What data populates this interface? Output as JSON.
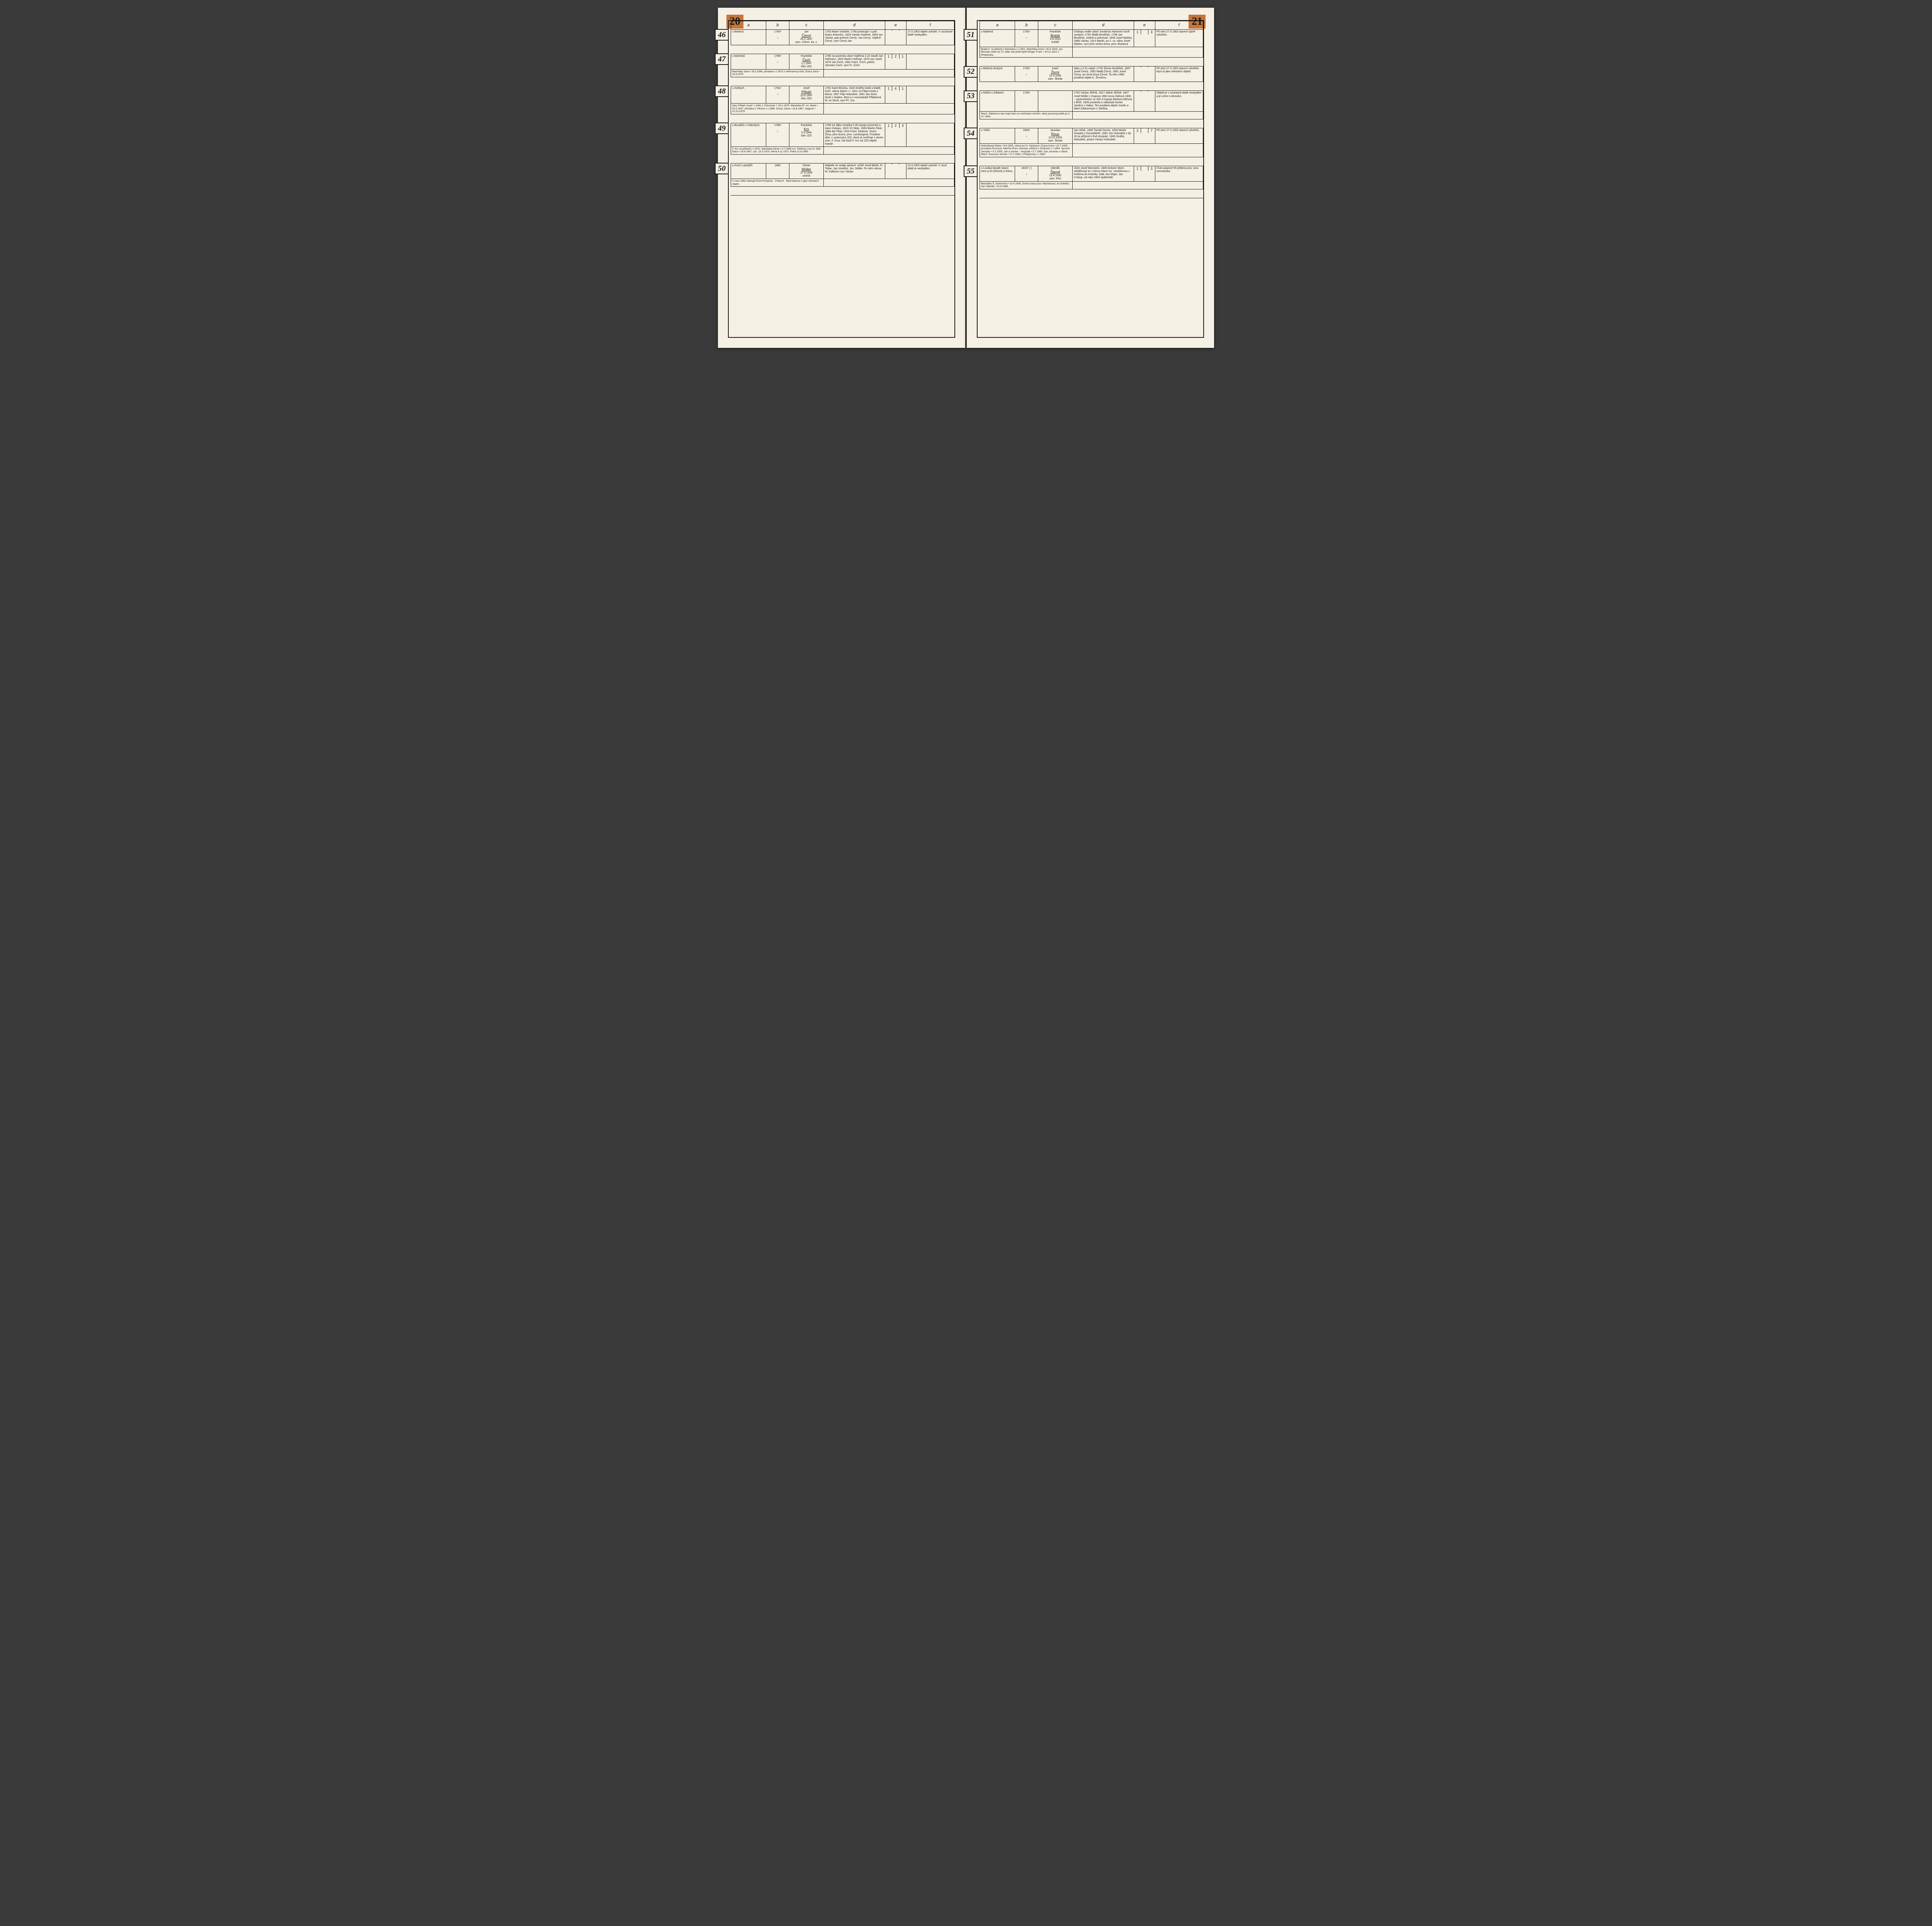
{
  "left": {
    "pageNum": "20",
    "headers": [
      "a",
      "b",
      "c",
      "d",
      "e",
      "f"
    ],
    "rows": [
      {
        "num": "46",
        "a": "u Bebeců",
        "b": "1783ᵃ",
        "circle": "○",
        "c": "Jan\nČerný\n26.2.1947\nzam. Chlum. ka. z.",
        "d": "1783 Adam Voráček, 1790 postoupil i s poli bratru Antonínu, 1824 Václav Voráček, 1863 syn Václav, pak Antonín Černý, Jan Černý, Vojtěch Černý, nyní Černý Jan",
        "e": [
          "",
          "",
          ""
        ],
        "f": "27.II.1903 objekt vyhořel. V současné době neobydlen.",
        "note": ""
      },
      {
        "num": "47",
        "a": "u Martínků",
        "b": "1785ᵃ",
        "circle": "○",
        "c": "František\nČech\n1.1.1947\nčlen JZD",
        "d": "1785 na pozemku obce Vojtěcha č.22 stavěl Jan Hofmann, 1822 Martin Hofman, 1870 syn Josef, 1878 Jan Čech, 1881 Frant. Čech, potom Jaroslav Čech, nyní Fr. Čech.",
        "e": [
          "1",
          "2",
          "1"
        ],
        "f": "",
        "note": "Manželka Jana • 18.3.1948, přivdána v r.1973 z Heřmanovy Huti. Dcera Jana • 16.9.1975."
      },
      {
        "num": "48",
        "a": "u Hořkých",
        "b": "1791ᵃ",
        "circle": "○",
        "c": "Josef\nPřibáň\n23.6.1947\nčlen JZD",
        "d": "1791 Karel Brůcha, 1823 Ondřej Hoibl a Matěj Koží, vdova Marie v r. 1831 za Filipa Kasla z Borov, 1857 Filip Holoubek, 1891 Jan Antm, lesař z Hrádce. Bem ji v novostavbě Přibáňová M. ze Sené, nyní Př. Jos.",
        "e": [
          "1",
          "4",
          "1"
        ],
        "f": "",
        "note": "Otec Přibáň Josef • r.1941 z Chlumčan † 29.1.1979. Manželka Př. ml. Marie • 20.5.1947, přivdána z Vlkonic v r.1966. Dcery: Dana • 19.8.1967, Dagmar • 10.10.1979."
      },
      {
        "num": "49",
        "a": "u Boudíků\nu Videckých",
        "b": "1786ᵃ",
        "circle": "○",
        "c": "František\nKrs\n3.3.1946\nčlen JZD",
        "d": "1786 od Jiljka Voráčka č.30 kupuje pozemek a staví chalupu, 1823 Vít Sleje, 1854 Martin Fikal, 1884 Ale Fikal, 1919 Frant. Nedoral. Vozím Žima, jeho dcera, prov. Lambergová. Prodává dům i s polnostmi JZD, které je směňuje s otcem zem. F. Krsa. Od časů F. Krs od JZD objekt kupuje.",
        "e": [
          "1",
          "2",
          "3"
        ],
        "f": "",
        "note": "F. Krs se přiženil v r.1972. Manželka Alena • 4.7.1948 roz. Fleflová z čp.13. Děti: Dana • 19.8.1967, syn. 23.3.1970, Alena 4.11.1972, Petra 21.8.1980."
      },
      {
        "num": "50",
        "a": "u Kozů\nu pastýřů",
        "b": "1882",
        "circle": "",
        "c": "Václav\nMüller\n27.9.1929\nzedník",
        "d": "Majitelé se nedají zjistovit: určitě Josef Bárlík, Fr. Tobar, Jan Voráček, Jos. Müller. Po něm vdova M. Kalboton syn Václav.",
        "e": [
          "",
          "",
          ""
        ],
        "f": "23.3.1903 objekt vyhořel. V souč. době je neobydlen.",
        "note": "V roce 1983 zakoupil Emil Pchopčas · Praha 6 · Mysl-bekova 1 jako rekreační objekt."
      }
    ]
  },
  "right": {
    "pageNum": "21",
    "headers": [
      "a",
      "b",
      "c",
      "d",
      "e",
      "f"
    ],
    "rows": [
      {
        "num": "51",
        "a": "u Myklesů",
        "b": "1792ᵃ",
        "circle": "○",
        "c": "František\nBrada\n9.8.1924\ntruhlář",
        "d": "Chalupu vedle vyboř. kovárnou Hamenní nově vystavil r.1792 Matěj Brodíček, 1798 Jan Brodíček, zedník a pokrývač, 1846 Josef Mykles, 1869 Václav, 1913 Martin, po 2. sv. válce Josef Mykles, nyní jeho sestra Anna, prov. Bradová.",
        "e": [
          "1",
          "",
          "3"
        ],
        "f": "Při ohni 27.II.1903 stavení úplně vyhořelo.",
        "note": "Brada F. se přiženil z Nehodiva v r.1951. Manželka Anna • 20.4.1929, syn Miroslav oddo čp.73. Dále zde ještě bydlí Klinger Frant. • 20.11.1912 z Přebýcinky."
      },
      {
        "num": "52",
        "a": "u Bebesů drukých",
        "b": "1792ᵃ",
        "circle": "○",
        "c": "Karel\nŽivný\n22.4.1950\nzam. Škoda",
        "d": "Jako u č.51 nabyl r.1792 Šimon Brodíček, 1847 Josef Černý, 1852 Matěj Černý, 1891 Josef Černý, po smrti Anna Černá. Ta roku 1980 prodává objekt K. Živnému.",
        "e": [
          "",
          "",
          ""
        ],
        "f": "Při ohni 27.II.1903 stavení vyhořelo. Nyní je jako rekreační objekt.",
        "note": ""
      },
      {
        "num": "53",
        "a": "u Míčků\nu Zdeborů",
        "b": "1792ᵃ",
        "circle": "",
        "c": "",
        "d": "1792 Václav Jiříček, 1817 Jakub Jiříček, 1847 Josef Müller z Oupova 1862 Anna Šážová 1900 – spoluměstice za 300 zl kupuje Barbora Míčová z Bříží. 1905 postavila a odkázala Hynku Jandovi z Habor. Ten prodává objekt Josefu a Marii Zdeborovým z Sehlina.",
        "e": [
          "",
          "",
          ""
        ],
        "f": "Objekt je v současné době neobydlen a je určen k demolici.",
        "note": "Manž. Zdeborovi zde mají krám se smíšeným zbožím, který provozují ještě po 2. sv. válce."
      },
      {
        "num": "54",
        "a": "u Vlčků",
        "b": "1805ᵃ",
        "circle": "○",
        "c": "Jaroslav\nRous\n13.12.1928\nzam. Škoda",
        "d": "Jan Vlček, 1805 Tomáš Domin, 1829 Martin Hnojský z Domažliček, 1862 Jan Holoubek z čp. 28 se přiženil k Evě Hnojské, 1895 Ondřej Holoubek, potom Václav Holoubek.",
        "e": [
          "2",
          "",
          "7"
        ],
        "f": "Při ohni 27.II.1903 stavení vyhořelo.",
        "note": "Holoubková Marie • 9.6.1905, vdova po H. Václavovi. Dcera Anna • 10.7.1930, provdaná Rousová. Manžel Rous Jaroslav, přiženil z Čečkovic v r.1954. Synové: Jaroslav • 5.2.1955, Jan a Václav – dvojčata • 5.7.1960. Syn Jaroslav s oženil. Manž. Rousová Jarmila • 27.2.1961 z Přebýcinky v r.1982."
      },
      {
        "num": "55",
        "a": "u Lováka\nbývalé stavní mezi p.53 (Elsinů) a řekou.",
        "b": "1810ᵃ\n(     )",
        "circle": "○",
        "c": "Zdeněk\nŠlengl\n13.4.1930\nzam. RAJ",
        "d": "1810 Josef Mornslein, 1840 Antonín Morn. odstěhoval se s ženou Marií roz. Voráčkovou z Kokšína do Ameriky. Dále Jan Majer, Jan Crokop, od roku 1903 spáleniště.",
        "e": [
          "1",
          "",
          "3"
        ],
        "f": "Číslo popisné 55 přebírá prov. srou novostavbu",
        "note": "Manželka Š. Drahomíra • 10.4.1936. Dcera Ivana prov. Machačová, do Soběšic. Syn Zdeněk • 22.9.1966."
      }
    ]
  },
  "colors": {
    "bg": "#f5f0e4",
    "ink": "#1a1a1a",
    "pagetab": "#c8743a"
  }
}
